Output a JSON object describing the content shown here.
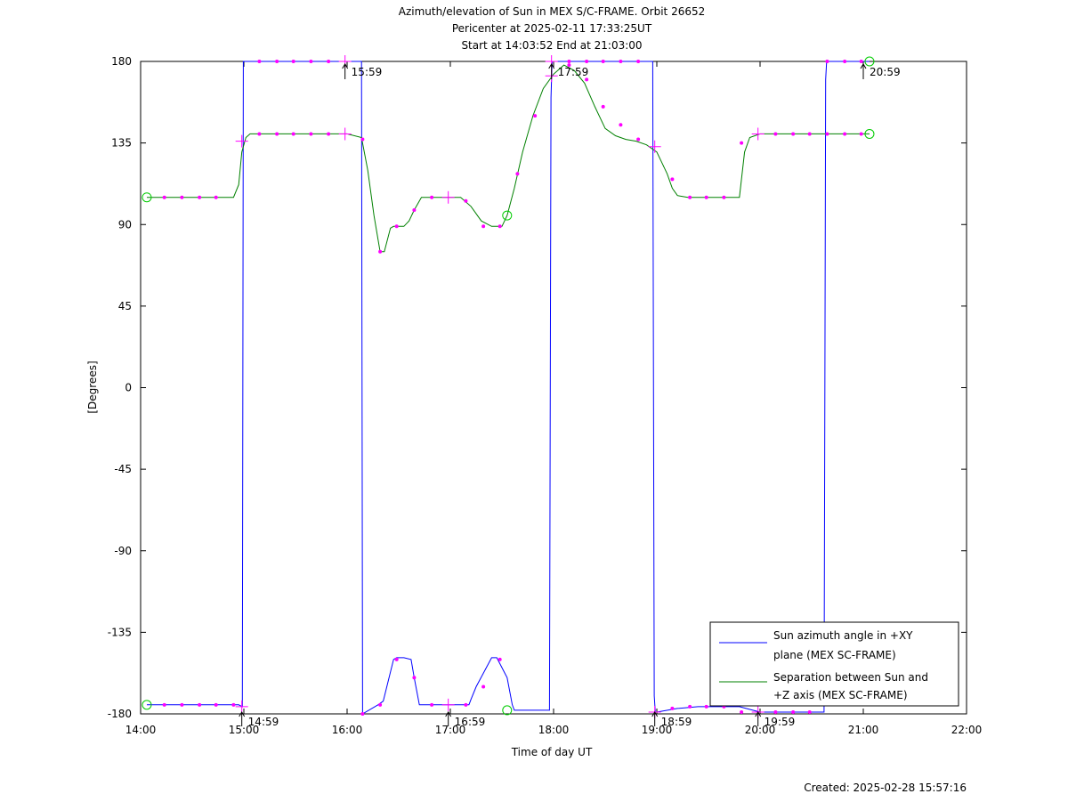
{
  "chart_data": {
    "type": "line",
    "title_lines": [
      "Azimuth/elevation of Sun in MEX S/C-FRAME.  Orbit 26652",
      "Pericenter at 2025-02-11 17:33:25UT",
      "Start at 14:03:52 End at 21:03:00"
    ],
    "xlabel": "Time of day UT",
    "ylabel": "[Degrees]",
    "xlim": [
      14.0,
      22.0
    ],
    "ylim": [
      -180,
      180
    ],
    "x_ticks": [
      {
        "value": 14.0,
        "label": "14:00"
      },
      {
        "value": 15.0,
        "label": "15:00"
      },
      {
        "value": 16.0,
        "label": "16:00"
      },
      {
        "value": 17.0,
        "label": "17:00"
      },
      {
        "value": 18.0,
        "label": "18:00"
      },
      {
        "value": 19.0,
        "label": "19:00"
      },
      {
        "value": 20.0,
        "label": "20:00"
      },
      {
        "value": 21.0,
        "label": "21:00"
      },
      {
        "value": 22.0,
        "label": "22:00"
      }
    ],
    "y_ticks": [
      {
        "value": 180,
        "label": "180"
      },
      {
        "value": 135,
        "label": "135"
      },
      {
        "value": 90,
        "label": "90"
      },
      {
        "value": 45,
        "label": "45"
      },
      {
        "value": 0,
        "label": "0"
      },
      {
        "value": -45,
        "label": "-45"
      },
      {
        "value": -90,
        "label": "-90"
      },
      {
        "value": -135,
        "label": "-135"
      },
      {
        "value": -180,
        "label": "-180"
      }
    ],
    "grid": false,
    "legend_position": "lower-right",
    "series": [
      {
        "name": "Sun azimuth angle in +XY plane (MEX SC-FRAME)",
        "legend_lines": [
          "Sun azimuth angle in +XY",
          "plane (MEX SC-FRAME)"
        ],
        "color": "#0000ff",
        "x": [
          14.06,
          14.2,
          14.4,
          14.6,
          14.8,
          14.95,
          14.985,
          14.995,
          15.005,
          15.02,
          15.2,
          15.4,
          15.6,
          15.8,
          15.98,
          16.0,
          16.1,
          16.14,
          16.15,
          16.3,
          16.35,
          16.45,
          16.48,
          16.55,
          16.62,
          16.65,
          16.7,
          16.78,
          17.0,
          17.18,
          17.2,
          17.25,
          17.4,
          17.45,
          17.55,
          17.6,
          17.62,
          17.8,
          17.96,
          17.975,
          17.985,
          18.0,
          18.05,
          18.1,
          18.2,
          18.4,
          18.6,
          18.85,
          18.96,
          18.975,
          18.985,
          19.0,
          19.2,
          19.4,
          19.6,
          19.8,
          20.0,
          20.2,
          20.4,
          20.62,
          20.635,
          20.645,
          20.66,
          20.8,
          21.0,
          21.06
        ],
        "y": [
          -175,
          -175,
          -175,
          -175,
          -175,
          -175,
          -176,
          180,
          180,
          180,
          180,
          180,
          180,
          180,
          180,
          180,
          180,
          180,
          -180,
          -175,
          -173,
          -150,
          -149,
          -149,
          -150,
          -160,
          -175,
          -175,
          -175,
          -175,
          -172,
          -165,
          -149,
          -149,
          -160,
          -175,
          -178,
          -178,
          -178,
          160,
          180,
          180,
          180,
          180,
          180,
          180,
          180,
          180,
          180,
          -170,
          -179,
          -179,
          -177,
          -176,
          -176,
          -176,
          -179,
          -179,
          -179,
          -179,
          170,
          180,
          180,
          180,
          180,
          180
        ],
        "markers": [
          {
            "x": 14.06,
            "y": -175,
            "style": "circle"
          },
          {
            "x": 14.23,
            "y": -175,
            "style": "dot"
          },
          {
            "x": 14.4,
            "y": -175,
            "style": "dot"
          },
          {
            "x": 14.57,
            "y": -175,
            "style": "dot"
          },
          {
            "x": 14.73,
            "y": -175,
            "style": "dot"
          },
          {
            "x": 14.9,
            "y": -175,
            "style": "dot"
          },
          {
            "x": 14.98,
            "y": -176,
            "style": "plus"
          },
          {
            "x": 15.15,
            "y": 180,
            "style": "dot"
          },
          {
            "x": 15.32,
            "y": 180,
            "style": "dot"
          },
          {
            "x": 15.48,
            "y": 180,
            "style": "dot"
          },
          {
            "x": 15.65,
            "y": 180,
            "style": "dot"
          },
          {
            "x": 15.82,
            "y": 180,
            "style": "dot"
          },
          {
            "x": 15.98,
            "y": 180,
            "style": "plus"
          },
          {
            "x": 16.15,
            "y": -180,
            "style": "dot"
          },
          {
            "x": 16.32,
            "y": -175,
            "style": "dot"
          },
          {
            "x": 16.48,
            "y": -150,
            "style": "dot"
          },
          {
            "x": 16.65,
            "y": -160,
            "style": "dot"
          },
          {
            "x": 16.82,
            "y": -175,
            "style": "dot"
          },
          {
            "x": 16.98,
            "y": -175,
            "style": "plus"
          },
          {
            "x": 17.15,
            "y": -175,
            "style": "dot"
          },
          {
            "x": 17.32,
            "y": -165,
            "style": "dot"
          },
          {
            "x": 17.48,
            "y": -150,
            "style": "dot"
          },
          {
            "x": 17.55,
            "y": -178,
            "style": "circle"
          },
          {
            "x": 17.98,
            "y": 180,
            "style": "plus"
          },
          {
            "x": 18.15,
            "y": 180,
            "style": "dot"
          },
          {
            "x": 18.32,
            "y": 180,
            "style": "dot"
          },
          {
            "x": 18.48,
            "y": 180,
            "style": "dot"
          },
          {
            "x": 18.65,
            "y": 180,
            "style": "dot"
          },
          {
            "x": 18.82,
            "y": 180,
            "style": "dot"
          },
          {
            "x": 18.98,
            "y": -179,
            "style": "plus"
          },
          {
            "x": 19.15,
            "y": -177,
            "style": "dot"
          },
          {
            "x": 19.32,
            "y": -176,
            "style": "dot"
          },
          {
            "x": 19.48,
            "y": -176,
            "style": "dot"
          },
          {
            "x": 19.65,
            "y": -176,
            "style": "dot"
          },
          {
            "x": 19.82,
            "y": -179,
            "style": "dot"
          },
          {
            "x": 19.98,
            "y": -179,
            "style": "plus"
          },
          {
            "x": 20.15,
            "y": -179,
            "style": "dot"
          },
          {
            "x": 20.32,
            "y": -179,
            "style": "dot"
          },
          {
            "x": 20.48,
            "y": -179,
            "style": "dot"
          },
          {
            "x": 20.65,
            "y": 180,
            "style": "dot"
          },
          {
            "x": 20.82,
            "y": 180,
            "style": "dot"
          },
          {
            "x": 20.98,
            "y": 180,
            "style": "dot"
          },
          {
            "x": 21.06,
            "y": 180,
            "style": "circle"
          }
        ]
      },
      {
        "name": "Separation between Sun and +Z axis (MEX SC-FRAME)",
        "legend_lines": [
          "Separation between Sun and",
          "+Z axis (MEX SC-FRAME)"
        ],
        "color": "#008000",
        "x": [
          14.06,
          14.2,
          14.4,
          14.6,
          14.8,
          14.9,
          14.95,
          14.98,
          15.02,
          15.06,
          15.2,
          15.4,
          15.6,
          15.8,
          16.0,
          16.14,
          16.2,
          16.26,
          16.32,
          16.36,
          16.42,
          16.45,
          16.55,
          16.6,
          16.65,
          16.72,
          16.8,
          17.0,
          17.1,
          17.2,
          17.3,
          17.4,
          17.5,
          17.55,
          17.62,
          17.7,
          17.8,
          17.9,
          18.0,
          18.1,
          18.2,
          18.3,
          18.4,
          18.5,
          18.6,
          18.7,
          18.8,
          18.9,
          19.0,
          19.1,
          19.15,
          19.2,
          19.3,
          19.4,
          19.6,
          19.8,
          19.85,
          19.9,
          20.0,
          20.2,
          20.4,
          20.6,
          20.8,
          21.06
        ],
        "y": [
          105,
          105,
          105,
          105,
          105,
          105,
          112,
          130,
          138,
          140,
          140,
          140,
          140,
          140,
          140,
          138,
          120,
          95,
          75,
          75,
          88,
          89,
          89,
          92,
          98,
          105,
          105,
          105,
          105,
          100,
          92,
          89,
          89,
          95,
          110,
          130,
          150,
          165,
          173,
          178,
          175,
          168,
          155,
          143,
          139,
          137,
          136,
          134,
          130,
          118,
          110,
          106,
          105,
          105,
          105,
          105,
          130,
          138,
          140,
          140,
          140,
          140,
          140,
          140
        ],
        "markers": [
          {
            "x": 14.06,
            "y": 105,
            "style": "circle"
          },
          {
            "x": 14.23,
            "y": 105,
            "style": "dot"
          },
          {
            "x": 14.4,
            "y": 105,
            "style": "dot"
          },
          {
            "x": 14.57,
            "y": 105,
            "style": "dot"
          },
          {
            "x": 14.73,
            "y": 105,
            "style": "dot"
          },
          {
            "x": 14.98,
            "y": 136,
            "style": "plus"
          },
          {
            "x": 15.15,
            "y": 140,
            "style": "dot"
          },
          {
            "x": 15.32,
            "y": 140,
            "style": "dot"
          },
          {
            "x": 15.48,
            "y": 140,
            "style": "dot"
          },
          {
            "x": 15.65,
            "y": 140,
            "style": "dot"
          },
          {
            "x": 15.82,
            "y": 140,
            "style": "dot"
          },
          {
            "x": 15.98,
            "y": 140,
            "style": "plus"
          },
          {
            "x": 16.15,
            "y": 137,
            "style": "dot"
          },
          {
            "x": 16.32,
            "y": 75,
            "style": "dot"
          },
          {
            "x": 16.48,
            "y": 89,
            "style": "dot"
          },
          {
            "x": 16.65,
            "y": 98,
            "style": "dot"
          },
          {
            "x": 16.82,
            "y": 105,
            "style": "dot"
          },
          {
            "x": 16.98,
            "y": 105,
            "style": "plus"
          },
          {
            "x": 17.15,
            "y": 103,
            "style": "dot"
          },
          {
            "x": 17.32,
            "y": 89,
            "style": "dot"
          },
          {
            "x": 17.48,
            "y": 89,
            "style": "dot"
          },
          {
            "x": 17.55,
            "y": 95,
            "style": "circle"
          },
          {
            "x": 17.65,
            "y": 118,
            "style": "dot"
          },
          {
            "x": 17.82,
            "y": 150,
            "style": "dot"
          },
          {
            "x": 17.98,
            "y": 172,
            "style": "plus"
          },
          {
            "x": 18.15,
            "y": 178,
            "style": "dot"
          },
          {
            "x": 18.32,
            "y": 170,
            "style": "dot"
          },
          {
            "x": 18.48,
            "y": 155,
            "style": "dot"
          },
          {
            "x": 18.65,
            "y": 145,
            "style": "dot"
          },
          {
            "x": 18.82,
            "y": 137,
            "style": "dot"
          },
          {
            "x": 18.98,
            "y": 133,
            "style": "plus"
          },
          {
            "x": 19.15,
            "y": 115,
            "style": "dot"
          },
          {
            "x": 19.32,
            "y": 105,
            "style": "dot"
          },
          {
            "x": 19.48,
            "y": 105,
            "style": "dot"
          },
          {
            "x": 19.65,
            "y": 105,
            "style": "dot"
          },
          {
            "x": 19.82,
            "y": 135,
            "style": "dot"
          },
          {
            "x": 19.98,
            "y": 140,
            "style": "plus"
          },
          {
            "x": 20.15,
            "y": 140,
            "style": "dot"
          },
          {
            "x": 20.32,
            "y": 140,
            "style": "dot"
          },
          {
            "x": 20.48,
            "y": 140,
            "style": "dot"
          },
          {
            "x": 20.65,
            "y": 140,
            "style": "dot"
          },
          {
            "x": 20.82,
            "y": 140,
            "style": "dot"
          },
          {
            "x": 20.98,
            "y": 140,
            "style": "dot"
          },
          {
            "x": 21.06,
            "y": 140,
            "style": "circle"
          }
        ]
      }
    ],
    "annotations": [
      {
        "x": 14.98,
        "y": -180,
        "label": "14:59",
        "anchor": "bottom"
      },
      {
        "x": 15.98,
        "y": 180,
        "label": "15:59",
        "anchor": "top"
      },
      {
        "x": 16.98,
        "y": -180,
        "label": "16:59",
        "anchor": "bottom"
      },
      {
        "x": 17.98,
        "y": 180,
        "label": "17:59",
        "anchor": "top"
      },
      {
        "x": 18.98,
        "y": -180,
        "label": "18:59",
        "anchor": "bottom"
      },
      {
        "x": 19.98,
        "y": -180,
        "label": "19:59",
        "anchor": "bottom"
      },
      {
        "x": 21.0,
        "y": 180,
        "label": "20:59",
        "anchor": "top"
      }
    ],
    "marker_color": "#ff00ff",
    "circle_color": "#00cc00"
  },
  "footer": {
    "created": "Created: 2025-02-28 15:57:16"
  }
}
